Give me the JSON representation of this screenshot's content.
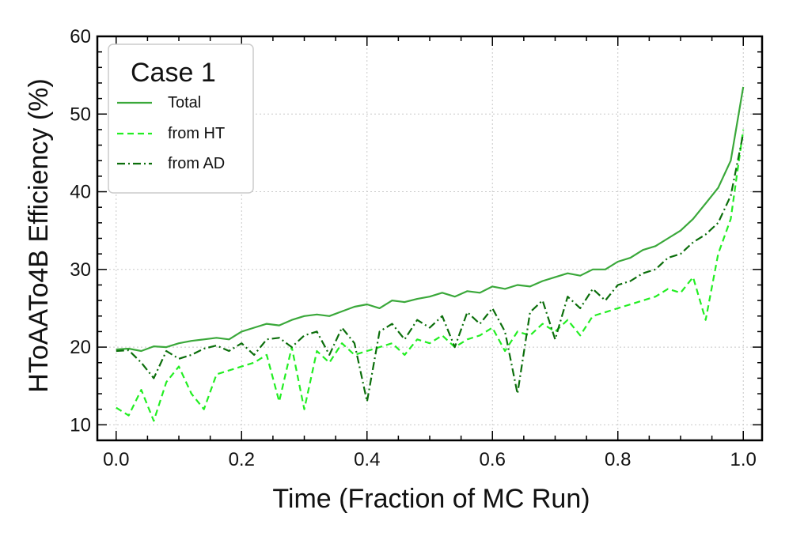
{
  "chart_data": {
    "type": "line",
    "xlabel": "Time (Fraction of MC Run)",
    "ylabel": "HToAATo4B Efficiency (%)",
    "xlim": [
      -0.03,
      1.03
    ],
    "ylim": [
      8,
      60
    ],
    "xticks": [
      0.0,
      0.2,
      0.4,
      0.6,
      0.8,
      1.0
    ],
    "xtick_labels": [
      "0.0",
      "0.2",
      "0.4",
      "0.6",
      "0.8",
      "1.0"
    ],
    "yticks": [
      10,
      20,
      30,
      40,
      50,
      60
    ],
    "ytick_labels": [
      "10",
      "20",
      "30",
      "40",
      "50",
      "60"
    ],
    "grid": true,
    "legend": {
      "title": "Case 1",
      "placement": "top-left"
    },
    "x": [
      0.0,
      0.02,
      0.04,
      0.06,
      0.08,
      0.1,
      0.12,
      0.14,
      0.16,
      0.18,
      0.2,
      0.22,
      0.24,
      0.26,
      0.28,
      0.3,
      0.32,
      0.34,
      0.36,
      0.38,
      0.4,
      0.42,
      0.44,
      0.46,
      0.48,
      0.5,
      0.52,
      0.54,
      0.56,
      0.58,
      0.6,
      0.62,
      0.64,
      0.66,
      0.68,
      0.7,
      0.72,
      0.74,
      0.76,
      0.78,
      0.8,
      0.82,
      0.84,
      0.86,
      0.88,
      0.9,
      0.92,
      0.94,
      0.96,
      0.98,
      1.0
    ],
    "series": [
      {
        "name": "Total",
        "color": "#3aa83a",
        "dash": "solid",
        "values": [
          19.7,
          19.8,
          19.5,
          20.1,
          20.0,
          20.5,
          20.8,
          21.0,
          21.2,
          21.0,
          22.0,
          22.5,
          23.0,
          22.8,
          23.5,
          24.0,
          24.2,
          24.0,
          24.6,
          25.2,
          25.5,
          25.0,
          26.0,
          25.8,
          26.2,
          26.5,
          27.0,
          26.5,
          27.2,
          27.0,
          27.8,
          27.5,
          28.0,
          27.8,
          28.5,
          29.0,
          29.5,
          29.2,
          30.0,
          30.0,
          31.0,
          31.5,
          32.5,
          33.0,
          34.0,
          35.0,
          36.5,
          38.5,
          40.5,
          44.0,
          53.5
        ]
      },
      {
        "name": "from HT",
        "color": "#22ee22",
        "dash": "dashed",
        "values": [
          12.2,
          11.2,
          14.5,
          10.5,
          15.5,
          17.5,
          14.0,
          12.0,
          16.5,
          17.0,
          17.5,
          18.0,
          19.0,
          13.0,
          20.0,
          12.0,
          19.5,
          18.0,
          20.5,
          19.0,
          19.5,
          20.0,
          20.5,
          19.0,
          21.0,
          20.5,
          21.5,
          20.0,
          21.0,
          21.5,
          22.5,
          19.5,
          22.0,
          21.5,
          23.0,
          22.0,
          23.5,
          21.5,
          24.0,
          24.5,
          25.0,
          25.5,
          26.0,
          26.5,
          27.5,
          27.0,
          29.0,
          23.5,
          32.0,
          36.5,
          48.0
        ]
      },
      {
        "name": "from AD",
        "color": "#0b6e0b",
        "dash": "dashdot",
        "values": [
          19.5,
          19.6,
          18.0,
          16.0,
          19.5,
          18.5,
          19.0,
          19.8,
          20.2,
          19.5,
          20.5,
          19.0,
          21.0,
          21.2,
          20.0,
          21.5,
          22.0,
          19.0,
          22.5,
          20.5,
          13.0,
          22.0,
          23.0,
          21.0,
          23.5,
          22.5,
          24.0,
          20.0,
          24.5,
          23.0,
          25.0,
          22.0,
          14.0,
          24.5,
          26.0,
          21.0,
          26.5,
          25.0,
          27.5,
          26.0,
          28.0,
          28.5,
          29.5,
          30.0,
          31.5,
          32.0,
          33.5,
          34.5,
          36.0,
          39.5,
          47.5
        ]
      }
    ]
  }
}
